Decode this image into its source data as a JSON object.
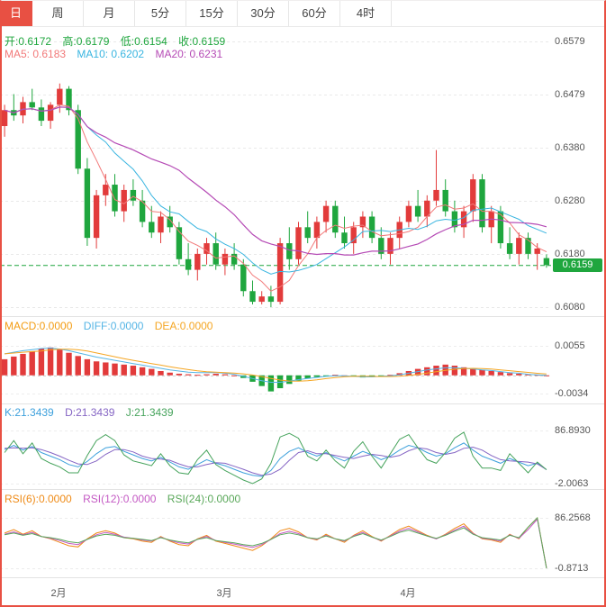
{
  "colors": {
    "up": "#e23b3b",
    "down": "#1fa63e",
    "ma5": "#f27979",
    "ma10": "#39b5e0",
    "ma20": "#b54ab5",
    "macd_label": "#f39c12",
    "diff": "#55b5e5",
    "dea": "#f5a623",
    "k": "#3da0dc",
    "d": "#8565c4",
    "j": "#46a35c",
    "rsi6": "#ef8b17",
    "rsi12": "#c45ac4",
    "rsi24": "#5aa85a",
    "tab_active_bg": "#e85043",
    "frame_border": "#e85043",
    "grid": "#e9e9e9",
    "axis_text": "#555555"
  },
  "tabs": [
    {
      "label": "日",
      "active": true
    },
    {
      "label": "周",
      "active": false
    },
    {
      "label": "月",
      "active": false
    },
    {
      "label": "5分",
      "active": false
    },
    {
      "label": "15分",
      "active": false
    },
    {
      "label": "30分",
      "active": false
    },
    {
      "label": "60分",
      "active": false
    },
    {
      "label": "4时",
      "active": false
    }
  ],
  "main": {
    "ohlc": {
      "open": "开:0.6172",
      "high": "高:0.6179",
      "low": "低:0.6154",
      "close": "收:0.6159"
    },
    "ma": {
      "ma5": "MA5: 0.6183",
      "ma10": "MA10: 0.6202",
      "ma20": "MA20: 0.6231"
    },
    "axis": [
      "0.6579",
      "0.6479",
      "0.6380",
      "0.6280",
      "0.6180",
      "0.6080"
    ],
    "current_price_label": "0.6159"
  },
  "macd": {
    "labels": {
      "macd": "MACD:0.0000",
      "diff": "DIFF:0.0000",
      "dea": "DEA:0.0000"
    },
    "axis": [
      "0.0055",
      "-0.0034"
    ]
  },
  "kdj": {
    "labels": {
      "k": "K:21.3439",
      "d": "D:21.3439",
      "j": "J:21.3439"
    },
    "axis": [
      "86.8930",
      "-2.0063"
    ]
  },
  "rsi": {
    "labels": {
      "rsi6": "RSI(6):0.0000",
      "rsi12": "RSI(12):0.0000",
      "rsi24": "RSI(24):0.0000"
    },
    "axis": [
      "86.2568",
      "-0.8713"
    ]
  },
  "chart_data": {
    "type": "candlestick",
    "title": "Daily FX candlestick chart with MACD, KDJ and RSI panels",
    "x_unit": "trading day",
    "month_ticks": [
      {
        "index": 6,
        "label": "2月"
      },
      {
        "index": 24,
        "label": "3月"
      },
      {
        "index": 44,
        "label": "4月"
      }
    ],
    "main": {
      "ylim": [
        0.608,
        0.6579
      ],
      "grid_prices": [
        0.6579,
        0.6479,
        0.638,
        0.628,
        0.618,
        0.608
      ],
      "current_price": 0.6159,
      "ma_periods": [
        5,
        10,
        20
      ],
      "candles": [
        [
          0.642,
          0.646,
          0.64,
          0.645
        ],
        [
          0.645,
          0.648,
          0.643,
          0.644
        ],
        [
          0.644,
          0.6475,
          0.6425,
          0.6465
        ],
        [
          0.6465,
          0.649,
          0.645,
          0.6455
        ],
        [
          0.6455,
          0.647,
          0.642,
          0.643
        ],
        [
          0.643,
          0.6465,
          0.6415,
          0.646
        ],
        [
          0.646,
          0.65,
          0.6445,
          0.649
        ],
        [
          0.649,
          0.6495,
          0.644,
          0.645
        ],
        [
          0.645,
          0.646,
          0.633,
          0.634
        ],
        [
          0.634,
          0.636,
          0.6195,
          0.621
        ],
        [
          0.621,
          0.63,
          0.619,
          0.629
        ],
        [
          0.629,
          0.633,
          0.627,
          0.631
        ],
        [
          0.631,
          0.633,
          0.625,
          0.626
        ],
        [
          0.626,
          0.631,
          0.624,
          0.63
        ],
        [
          0.63,
          0.632,
          0.627,
          0.628
        ],
        [
          0.628,
          0.63,
          0.623,
          0.624
        ],
        [
          0.624,
          0.627,
          0.621,
          0.622
        ],
        [
          0.622,
          0.626,
          0.62,
          0.625
        ],
        [
          0.625,
          0.627,
          0.622,
          0.623
        ],
        [
          0.623,
          0.624,
          0.616,
          0.617
        ],
        [
          0.617,
          0.62,
          0.614,
          0.615
        ],
        [
          0.615,
          0.619,
          0.613,
          0.618
        ],
        [
          0.618,
          0.621,
          0.616,
          0.62
        ],
        [
          0.62,
          0.622,
          0.615,
          0.616
        ],
        [
          0.616,
          0.619,
          0.614,
          0.618
        ],
        [
          0.618,
          0.62,
          0.615,
          0.616
        ],
        [
          0.616,
          0.617,
          0.61,
          0.611
        ],
        [
          0.611,
          0.613,
          0.6085,
          0.609
        ],
        [
          0.609,
          0.611,
          0.6085,
          0.61
        ],
        [
          0.61,
          0.612,
          0.608,
          0.609
        ],
        [
          0.609,
          0.621,
          0.6085,
          0.62
        ],
        [
          0.62,
          0.623,
          0.615,
          0.617
        ],
        [
          0.617,
          0.624,
          0.616,
          0.623
        ],
        [
          0.623,
          0.626,
          0.62,
          0.621
        ],
        [
          0.621,
          0.625,
          0.619,
          0.624
        ],
        [
          0.624,
          0.628,
          0.622,
          0.627
        ],
        [
          0.627,
          0.628,
          0.621,
          0.622
        ],
        [
          0.622,
          0.625,
          0.619,
          0.62
        ],
        [
          0.62,
          0.624,
          0.618,
          0.623
        ],
        [
          0.623,
          0.626,
          0.621,
          0.625
        ],
        [
          0.625,
          0.626,
          0.62,
          0.621
        ],
        [
          0.621,
          0.623,
          0.617,
          0.618
        ],
        [
          0.618,
          0.622,
          0.616,
          0.621
        ],
        [
          0.621,
          0.625,
          0.619,
          0.624
        ],
        [
          0.624,
          0.628,
          0.623,
          0.627
        ],
        [
          0.627,
          0.63,
          0.624,
          0.625
        ],
        [
          0.625,
          0.629,
          0.623,
          0.628
        ],
        [
          0.628,
          0.6375,
          0.627,
          0.63
        ],
        [
          0.63,
          0.632,
          0.625,
          0.626
        ],
        [
          0.626,
          0.628,
          0.622,
          0.623
        ],
        [
          0.623,
          0.627,
          0.621,
          0.626
        ],
        [
          0.626,
          0.633,
          0.624,
          0.632
        ],
        [
          0.632,
          0.633,
          0.622,
          0.623
        ],
        [
          0.623,
          0.627,
          0.62,
          0.626
        ],
        [
          0.626,
          0.627,
          0.619,
          0.62
        ],
        [
          0.62,
          0.623,
          0.617,
          0.618
        ],
        [
          0.618,
          0.622,
          0.616,
          0.621
        ],
        [
          0.621,
          0.622,
          0.617,
          0.618
        ],
        [
          0.618,
          0.62,
          0.615,
          0.619
        ],
        [
          0.6172,
          0.6179,
          0.6154,
          0.6159
        ]
      ]
    },
    "macd": {
      "ylim": [
        -0.0034,
        0.0055
      ],
      "hist": [
        0.003,
        0.0035,
        0.004,
        0.0045,
        0.005,
        0.0052,
        0.0048,
        0.0042,
        0.0036,
        0.003,
        0.0026,
        0.0024,
        0.0022,
        0.002,
        0.0018,
        0.0015,
        0.0012,
        0.0008,
        0.0005,
        0.0003,
        0.0002,
        0.0001,
        0.0002,
        0.0003,
        0.0002,
        0.0,
        -0.0005,
        -0.0012,
        -0.002,
        -0.003,
        -0.0024,
        -0.0016,
        -0.001,
        -0.0006,
        -0.0003,
        -0.0001,
        0.0001,
        0.0,
        -0.0002,
        -0.0004,
        -0.0003,
        -0.0002,
        0.0001,
        0.0004,
        0.0008,
        0.0012,
        0.0015,
        0.0018,
        0.002,
        0.0018,
        0.0015,
        0.0012,
        0.001,
        0.0008,
        0.0006,
        0.0004,
        0.0003,
        0.0002,
        0.0001,
        0.0
      ],
      "diff": [
        0.004,
        0.0043,
        0.0046,
        0.0048,
        0.005,
        0.0051,
        0.0049,
        0.0046,
        0.0042,
        0.0038,
        0.0034,
        0.0031,
        0.0028,
        0.0025,
        0.0022,
        0.0019,
        0.0016,
        0.0013,
        0.001,
        0.0008,
        0.0006,
        0.0005,
        0.0005,
        0.0005,
        0.0004,
        0.0002,
        -0.0002,
        -0.0006,
        -0.001,
        -0.0013,
        -0.0013,
        -0.0011,
        -0.0008,
        -0.0006,
        -0.0004,
        -0.0002,
        -0.0001,
        -0.0001,
        -0.0002,
        -0.0003,
        -0.0003,
        -0.0002,
        -0.0001,
        0.0001,
        0.0004,
        0.0007,
        0.001,
        0.0012,
        0.0014,
        0.0014,
        0.0013,
        0.0012,
        0.001,
        0.0009,
        0.0007,
        0.0005,
        0.0004,
        0.0002,
        0.0001,
        0.0
      ],
      "dea_period": 5
    },
    "kdj": {
      "ylim": [
        -2.0063,
        86.893
      ],
      "k": [
        55,
        62,
        54,
        60,
        50,
        44,
        38,
        30,
        26,
        35,
        48,
        58,
        60,
        52,
        46,
        40,
        36,
        42,
        34,
        26,
        22,
        30,
        38,
        32,
        28,
        22,
        16,
        12,
        10,
        20,
        40,
        52,
        58,
        50,
        44,
        50,
        42,
        36,
        44,
        52,
        46,
        38,
        44,
        54,
        62,
        58,
        50,
        44,
        48,
        58,
        66,
        54,
        44,
        38,
        32,
        40,
        34,
        28,
        32,
        21.34
      ],
      "d": [
        57,
        58,
        57,
        58,
        55,
        50,
        44,
        37,
        31,
        30,
        36,
        47,
        55,
        55,
        51,
        44,
        40,
        39,
        37,
        31,
        26,
        26,
        30,
        33,
        32,
        27,
        22,
        16,
        12,
        14,
        22,
        37,
        50,
        53,
        48,
        48,
        45,
        42,
        40,
        44,
        47,
        45,
        42,
        45,
        53,
        58,
        56,
        50,
        47,
        50,
        57,
        59,
        54,
        45,
        38,
        36,
        35,
        34,
        31,
        21.34
      ],
      "j": [
        50,
        70,
        48,
        66,
        40,
        32,
        26,
        16,
        16,
        45,
        70,
        80,
        70,
        46,
        36,
        32,
        28,
        48,
        28,
        16,
        14,
        38,
        54,
        30,
        20,
        12,
        4,
        -2,
        6,
        32,
        76,
        82,
        74,
        44,
        36,
        54,
        36,
        24,
        52,
        68,
        44,
        24,
        48,
        72,
        80,
        58,
        38,
        32,
        50,
        74,
        84,
        44,
        24,
        24,
        20,
        48,
        32,
        16,
        34,
        21.34
      ]
    },
    "rsi": {
      "ylim": [
        -0.8713,
        86.2568
      ],
      "rsi6": [
        60,
        66,
        58,
        64,
        54,
        50,
        44,
        38,
        36,
        50,
        60,
        64,
        60,
        52,
        50,
        46,
        44,
        54,
        46,
        40,
        38,
        50,
        56,
        46,
        42,
        38,
        34,
        30,
        38,
        50,
        64,
        68,
        62,
        52,
        48,
        58,
        50,
        44,
        56,
        64,
        54,
        46,
        56,
        66,
        72,
        64,
        56,
        50,
        58,
        68,
        76,
        60,
        50,
        48,
        44,
        58,
        50,
        70,
        86,
        0
      ],
      "rsi12": [
        58,
        62,
        57,
        61,
        54,
        51,
        47,
        42,
        40,
        49,
        57,
        61,
        58,
        53,
        51,
        48,
        46,
        53,
        47,
        43,
        41,
        49,
        54,
        47,
        44,
        41,
        38,
        35,
        40,
        49,
        59,
        63,
        59,
        52,
        49,
        56,
        50,
        46,
        55,
        61,
        53,
        47,
        55,
        63,
        68,
        62,
        55,
        50,
        57,
        65,
        72,
        59,
        51,
        49,
        46,
        57,
        51,
        66,
        84,
        0
      ],
      "rsi24": [
        57,
        60,
        56,
        59,
        54,
        52,
        49,
        45,
        43,
        49,
        55,
        58,
        56,
        52,
        51,
        49,
        47,
        52,
        48,
        45,
        43,
        49,
        52,
        47,
        45,
        43,
        40,
        38,
        42,
        49,
        57,
        60,
        57,
        52,
        50,
        55,
        50,
        47,
        54,
        59,
        53,
        48,
        54,
        61,
        65,
        60,
        55,
        51,
        56,
        63,
        69,
        58,
        52,
        50,
        48,
        56,
        52,
        70,
        86.25,
        -0.87
      ]
    }
  }
}
